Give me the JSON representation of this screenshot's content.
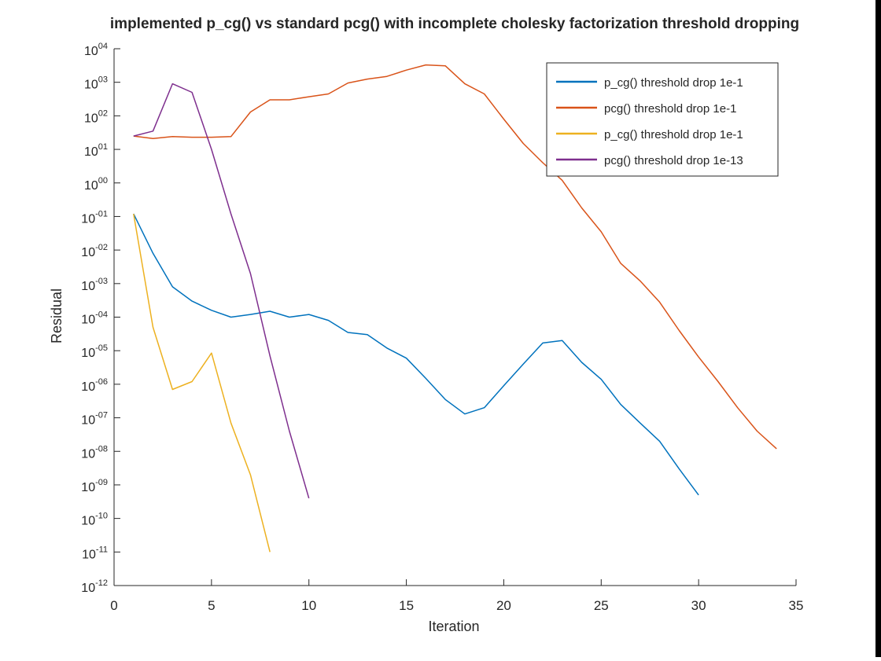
{
  "chart_data": {
    "type": "line",
    "title": "implemented p_cg() vs standard pcg() with incomplete cholesky factorization threshold dropping",
    "xlabel": "Iteration",
    "ylabel": "Residual",
    "xlim": [
      0,
      35
    ],
    "xticks": [
      0,
      5,
      10,
      15,
      20,
      25,
      30,
      35
    ],
    "ylim": [
      1e-12,
      10000.0
    ],
    "yscale": "log",
    "ytick_exponents": [
      4,
      3,
      2,
      1,
      0,
      -1,
      -2,
      -3,
      -4,
      -5,
      -6,
      -7,
      -8,
      -9,
      -10,
      -11,
      -12
    ],
    "ytick_exponent_labels": [
      "04",
      "03",
      "02",
      "01",
      "00",
      "-01",
      "-02",
      "-03",
      "-04",
      "-05",
      "-06",
      "-07",
      "-08",
      "-09",
      "-10",
      "-11",
      "-12"
    ],
    "ytick_base": "10",
    "grid": false,
    "legend_position": "top-right",
    "series": [
      {
        "name": "p_cg() threshold drop 1e-1",
        "color": "#0072bd",
        "x": [
          1,
          2,
          3,
          4,
          5,
          6,
          7,
          8,
          9,
          10,
          11,
          12,
          13,
          14,
          15,
          16,
          17,
          18,
          19,
          20,
          21,
          22,
          23,
          24,
          25,
          26,
          27,
          28,
          29,
          30
        ],
        "y": [
          0.12,
          0.008,
          0.0008,
          0.0003,
          0.00016,
          0.0001,
          0.00012,
          0.00015,
          0.0001,
          0.00012,
          8e-05,
          3.5e-05,
          3e-05,
          1.2e-05,
          6e-06,
          1.5e-06,
          3.5e-07,
          1.3e-07,
          2e-07,
          9e-07,
          4e-06,
          1.7e-05,
          2e-05,
          4.5e-06,
          1.4e-06,
          2.5e-07,
          7e-08,
          2e-08,
          3e-09,
          5e-10
        ]
      },
      {
        "name": "pcg() threshold drop 1e-1",
        "color": "#d95319",
        "x": [
          1,
          2,
          3,
          4,
          5,
          6,
          7,
          8,
          9,
          10,
          11,
          12,
          13,
          14,
          15,
          16,
          17,
          18,
          19,
          20,
          21,
          22,
          23,
          24,
          25,
          26,
          27,
          28,
          29,
          30,
          31,
          32,
          33,
          34
        ],
        "y": [
          25,
          21,
          24,
          23,
          23,
          24,
          130,
          300,
          300,
          370,
          450,
          950,
          1250,
          1500,
          2300,
          3300,
          3100,
          900,
          450,
          80,
          15,
          4,
          1.2,
          0.18,
          0.035,
          0.004,
          0.0012,
          0.00028,
          4e-05,
          6.5e-06,
          1.2e-06,
          2e-07,
          4e-08,
          1.2e-08
        ]
      },
      {
        "name": "p_cg() threshold drop 1e-1",
        "color": "#edb120",
        "x": [
          1,
          2,
          3,
          4,
          5,
          6,
          7,
          8
        ],
        "y": [
          0.12,
          5e-05,
          7e-07,
          1.2e-06,
          8.5e-06,
          7e-08,
          2e-09,
          1e-11
        ]
      },
      {
        "name": "pcg() threshold drop 1e-13",
        "color": "#7e2f8e",
        "x": [
          1,
          2,
          3,
          4,
          5,
          6,
          7,
          8,
          9,
          10
        ],
        "y": [
          25,
          35,
          900,
          500,
          10,
          0.12,
          0.002,
          7e-06,
          4e-08,
          4e-10
        ]
      }
    ]
  }
}
